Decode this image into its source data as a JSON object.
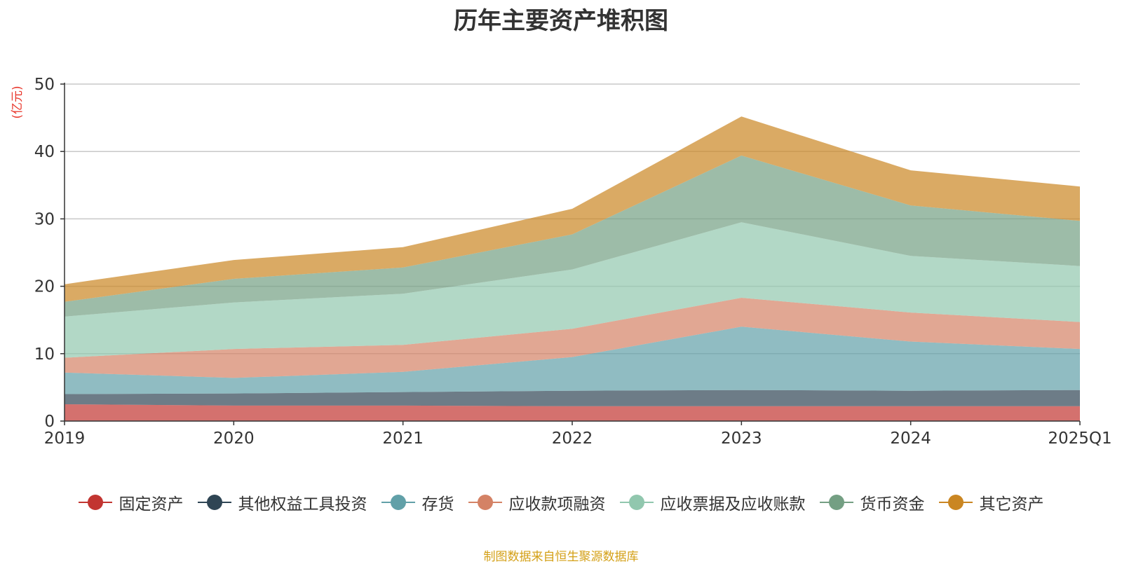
{
  "chart_data": {
    "type": "area",
    "stacked": true,
    "title": "历年主要资产堆积图",
    "ylabel": "(亿元)",
    "xlabel": "",
    "categories": [
      "2019",
      "2020",
      "2021",
      "2022",
      "2023",
      "2024",
      "2025Q1"
    ],
    "ylim": [
      0,
      50
    ],
    "yticks": [
      0,
      10,
      20,
      30,
      40,
      50
    ],
    "grid": true,
    "legend_position": "bottom",
    "series": [
      {
        "name": "固定资产",
        "color": "#c23531",
        "values": [
          2.5,
          2.3,
          2.3,
          2.2,
          2.2,
          2.2,
          2.2
        ]
      },
      {
        "name": "其他权益工具投资",
        "color": "#2f4554",
        "values": [
          1.5,
          1.8,
          2.0,
          2.3,
          2.4,
          2.3,
          2.4
        ]
      },
      {
        "name": "存货",
        "color": "#61a0a8",
        "values": [
          3.2,
          2.3,
          3.0,
          5.0,
          9.4,
          7.3,
          6.1
        ]
      },
      {
        "name": "应收款项融资",
        "color": "#d48265",
        "values": [
          2.2,
          4.3,
          4.0,
          4.2,
          4.3,
          4.3,
          4.0
        ]
      },
      {
        "name": "应收票据及应收账款",
        "color": "#91c7ae",
        "values": [
          6.1,
          6.9,
          7.6,
          8.8,
          11.2,
          8.4,
          8.3
        ]
      },
      {
        "name": "货币资金",
        "color": "#749f83",
        "values": [
          2.2,
          3.5,
          3.9,
          5.2,
          9.9,
          7.5,
          6.7
        ]
      },
      {
        "name": "其它资产",
        "color": "#ca8622",
        "values": [
          2.6,
          2.8,
          3.0,
          3.8,
          5.8,
          5.2,
          5.1
        ]
      }
    ],
    "source_note": "制图数据来自恒生聚源数据库"
  }
}
